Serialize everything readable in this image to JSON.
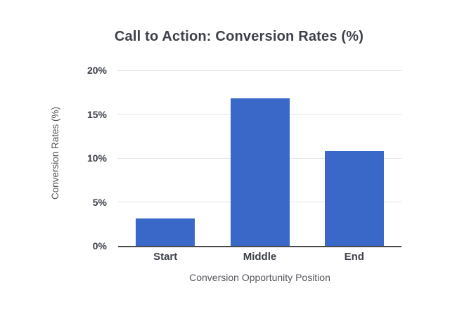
{
  "chart": {
    "title": "Call to Action: Conversion Rates (%)",
    "y_axis": {
      "label": "Conversion Rates (%)"
    },
    "x_axis": {
      "label": "Conversion Opportunity Position"
    }
  },
  "chart_data": {
    "type": "bar",
    "title": "Call to Action: Conversion Rates (%)",
    "categories": [
      "Start",
      "Middle",
      "End"
    ],
    "values": [
      3.1,
      16.8,
      10.8
    ],
    "xlabel": "Conversion Opportunity Position",
    "ylabel": "Conversion Rates (%)",
    "ylim": [
      0,
      20
    ],
    "yticks": [
      0,
      5,
      10,
      15,
      20
    ],
    "ytick_labels": [
      "0%",
      "5%",
      "10%",
      "15%",
      "20%"
    ],
    "grid": "horizontal",
    "legend": "none"
  },
  "colors": {
    "bar": "#3a68c9",
    "title_text": "#3e414b",
    "tick_text": "#3e414b",
    "axis_label_text": "#54565c",
    "gridline": "#e3e3e3",
    "axis_line": "#4a4a4a",
    "background": "#ffffff"
  }
}
